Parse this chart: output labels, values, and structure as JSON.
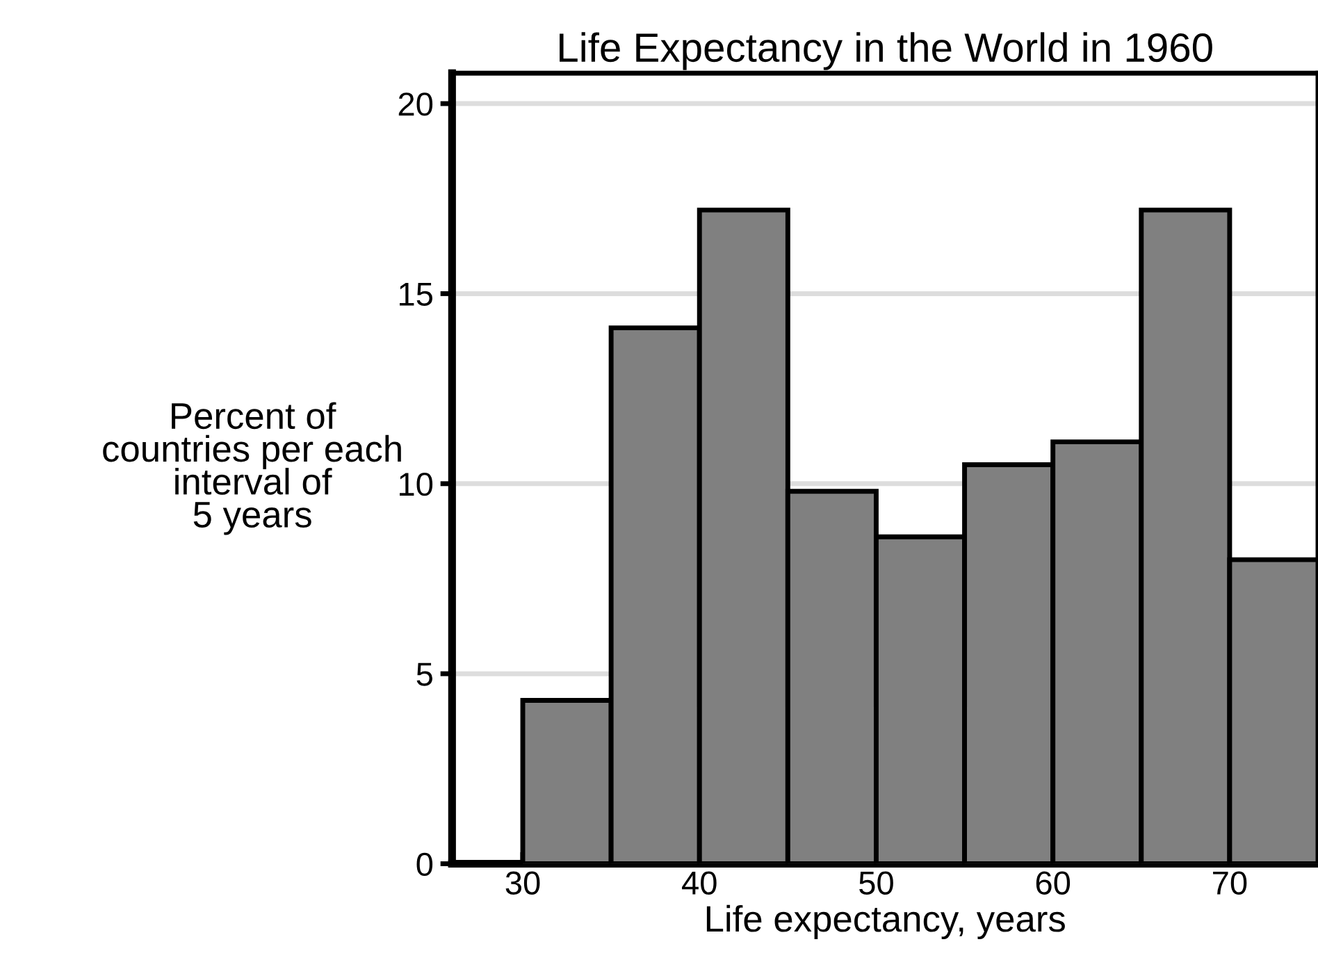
{
  "chart_data": {
    "type": "histogram",
    "title": "Life Expectancy in the World in 1960",
    "xlabel": "Life expectancy, years",
    "ylabel": "Percent of\ncountries per each\ninterval of\n5 years",
    "bins": [
      30,
      35,
      40,
      45,
      50,
      55,
      60,
      65,
      70,
      75
    ],
    "values": [
      4.3,
      14.1,
      17.2,
      9.8,
      8.6,
      10.5,
      11.1,
      17.2,
      8.0
    ],
    "color": "#808080",
    "xlim": [
      26,
      75
    ],
    "xticks": [
      30,
      40,
      50,
      60,
      70
    ],
    "ylim": [
      0,
      20.8
    ],
    "yticks": [
      0,
      5,
      10,
      15,
      20
    ],
    "grid": "y",
    "legend": false
  }
}
